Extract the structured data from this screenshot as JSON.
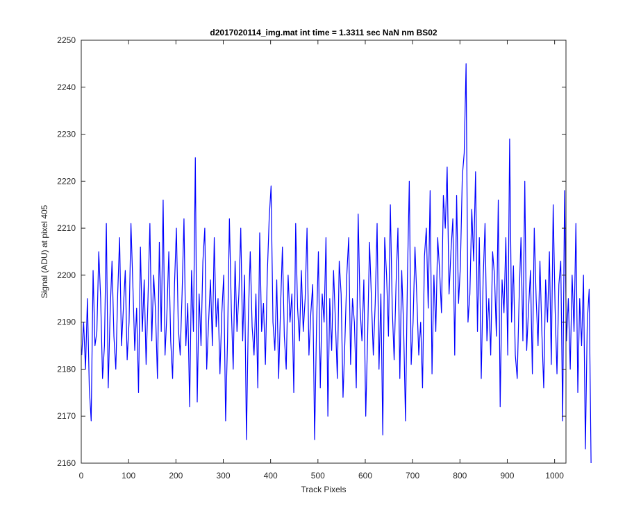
{
  "chart_data": {
    "type": "line",
    "title": "d2017020114_img.mat int time = 1.3311 sec  NaN nm BS02",
    "xlabel": "Track Pixels",
    "ylabel": "Signal (ADU) at pixel 405",
    "xlim": [
      0,
      1024
    ],
    "ylim": [
      2160,
      2250
    ],
    "xticks": [
      0,
      100,
      200,
      300,
      400,
      500,
      600,
      700,
      800,
      900,
      1000
    ],
    "yticks": [
      2160,
      2170,
      2180,
      2190,
      2200,
      2210,
      2220,
      2230,
      2240,
      2250
    ],
    "grid": false,
    "legend": "none",
    "series_color": "#0000ff",
    "series": [
      {
        "x_start": 1,
        "x_step": 4,
        "values": [
          2183,
          2190,
          2180,
          2195,
          2176,
          2169,
          2201,
          2185,
          2188,
          2205,
          2195,
          2178,
          2185,
          2211,
          2176,
          2192,
          2203,
          2187,
          2180,
          2196,
          2208,
          2185,
          2193,
          2201,
          2182,
          2190,
          2211,
          2198,
          2184,
          2193,
          2175,
          2206,
          2188,
          2199,
          2181,
          2195,
          2211,
          2186,
          2200,
          2192,
          2178,
          2207,
          2188,
          2216,
          2183,
          2192,
          2205,
          2186,
          2178,
          2198,
          2210,
          2189,
          2183,
          2196,
          2212,
          2185,
          2194,
          2172,
          2201,
          2188,
          2225,
          2173,
          2196,
          2185,
          2203,
          2210,
          2180,
          2190,
          2199,
          2185,
          2208,
          2189,
          2195,
          2179,
          2192,
          2200,
          2169,
          2186,
          2212,
          2193,
          2180,
          2203,
          2188,
          2196,
          2210,
          2186,
          2200,
          2165,
          2191,
          2205,
          2189,
          2183,
          2196,
          2176,
          2209,
          2188,
          2194,
          2181,
          2200,
          2212,
          2219,
          2190,
          2184,
          2199,
          2178,
          2193,
          2206,
          2187,
          2180,
          2200,
          2190,
          2196,
          2175,
          2211,
          2193,
          2186,
          2201,
          2188,
          2195,
          2210,
          2183,
          2192,
          2198,
          2165,
          2189,
          2205,
          2176,
          2196,
          2190,
          2208,
          2170,
          2195,
          2184,
          2201,
          2190,
          2178,
          2203,
          2196,
          2174,
          2186,
          2200,
          2208,
          2181,
          2195,
          2190,
          2176,
          2213,
          2193,
          2186,
          2199,
          2170,
          2187,
          2207,
          2195,
          2183,
          2194,
          2211,
          2180,
          2196,
          2166,
          2208,
          2200,
          2187,
          2215,
          2193,
          2182,
          2198,
          2210,
          2178,
          2201,
          2189,
          2169,
          2199,
          2220,
          2181,
          2190,
          2206,
          2195,
          2183,
          2190,
          2176,
          2204,
          2210,
          2193,
          2218,
          2179,
          2200,
          2188,
          2208,
          2201,
          2192,
          2217,
          2210,
          2223,
          2196,
          2205,
          2212,
          2183,
          2217,
          2194,
          2202,
          2221,
          2226,
          2245,
          2190,
          2196,
          2214,
          2203,
          2222,
          2188,
          2208,
          2178,
          2199,
          2211,
          2186,
          2195,
          2183,
          2205,
          2200,
          2187,
          2216,
          2172,
          2199,
          2192,
          2208,
          2183,
          2229,
          2190,
          2202,
          2183,
          2178,
          2195,
          2208,
          2186,
          2220,
          2184,
          2193,
          2201,
          2179,
          2210,
          2195,
          2185,
          2203,
          2188,
          2176,
          2199,
          2190,
          2205,
          2181,
          2215,
          2193,
          2179,
          2198,
          2203,
          2169,
          2218,
          2186,
          2195,
          2180,
          2200,
          2188,
          2211,
          2175,
          2195,
          2185,
          2200,
          2163,
          2190,
          2197,
          2160
        ]
      }
    ]
  }
}
